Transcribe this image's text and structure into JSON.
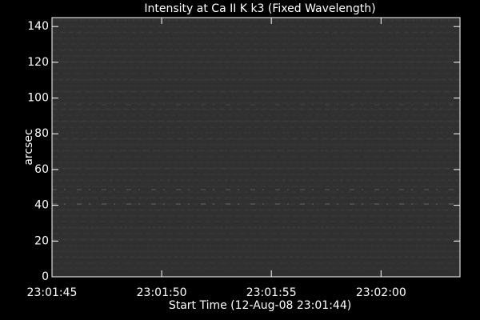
{
  "chart_data": {
    "type": "image",
    "title": "Intensity at Ca II K k3 (Fixed Wavelength)",
    "xlabel": "Start Time (12-Aug-08 23:01:44)",
    "ylabel": "arcsec",
    "xlim": [
      1,
      19.6
    ],
    "xticks": [
      {
        "value": 1,
        "label": "23:01:45"
      },
      {
        "value": 6,
        "label": "23:01:50"
      },
      {
        "value": 11,
        "label": "23:01:55"
      },
      {
        "value": 16,
        "label": "23:02:00"
      }
    ],
    "ylim": [
      0,
      145
    ],
    "yticks": [
      0,
      20,
      40,
      60,
      80,
      100,
      120,
      140
    ],
    "color": "#303030"
  }
}
